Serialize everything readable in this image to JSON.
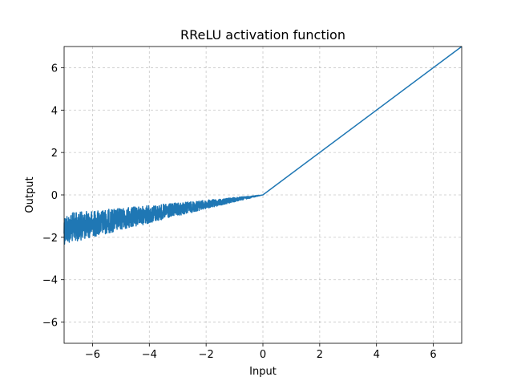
{
  "chart_data": {
    "type": "line",
    "title": "RReLU activation function",
    "xlabel": "Input",
    "ylabel": "Output",
    "xlim": [
      -7,
      7
    ],
    "ylim": [
      -7,
      7
    ],
    "xticks": [
      -6,
      -4,
      -2,
      0,
      2,
      4,
      6
    ],
    "yticks": [
      -6,
      -4,
      -2,
      0,
      2,
      4,
      6
    ],
    "grid": true,
    "line_color": "#1f77b4",
    "negative_slope_range": [
      0.125,
      0.333
    ],
    "series": [
      {
        "x": [
          -7.0,
          -6.0,
          -5.0,
          -4.0,
          -3.0,
          -2.0,
          -1.0,
          0.0,
          7.0
        ],
        "y": [
          -1.6,
          -1.35,
          -1.15,
          -0.9,
          -0.7,
          -0.45,
          -0.22,
          0.0,
          7.0
        ]
      }
    ]
  }
}
